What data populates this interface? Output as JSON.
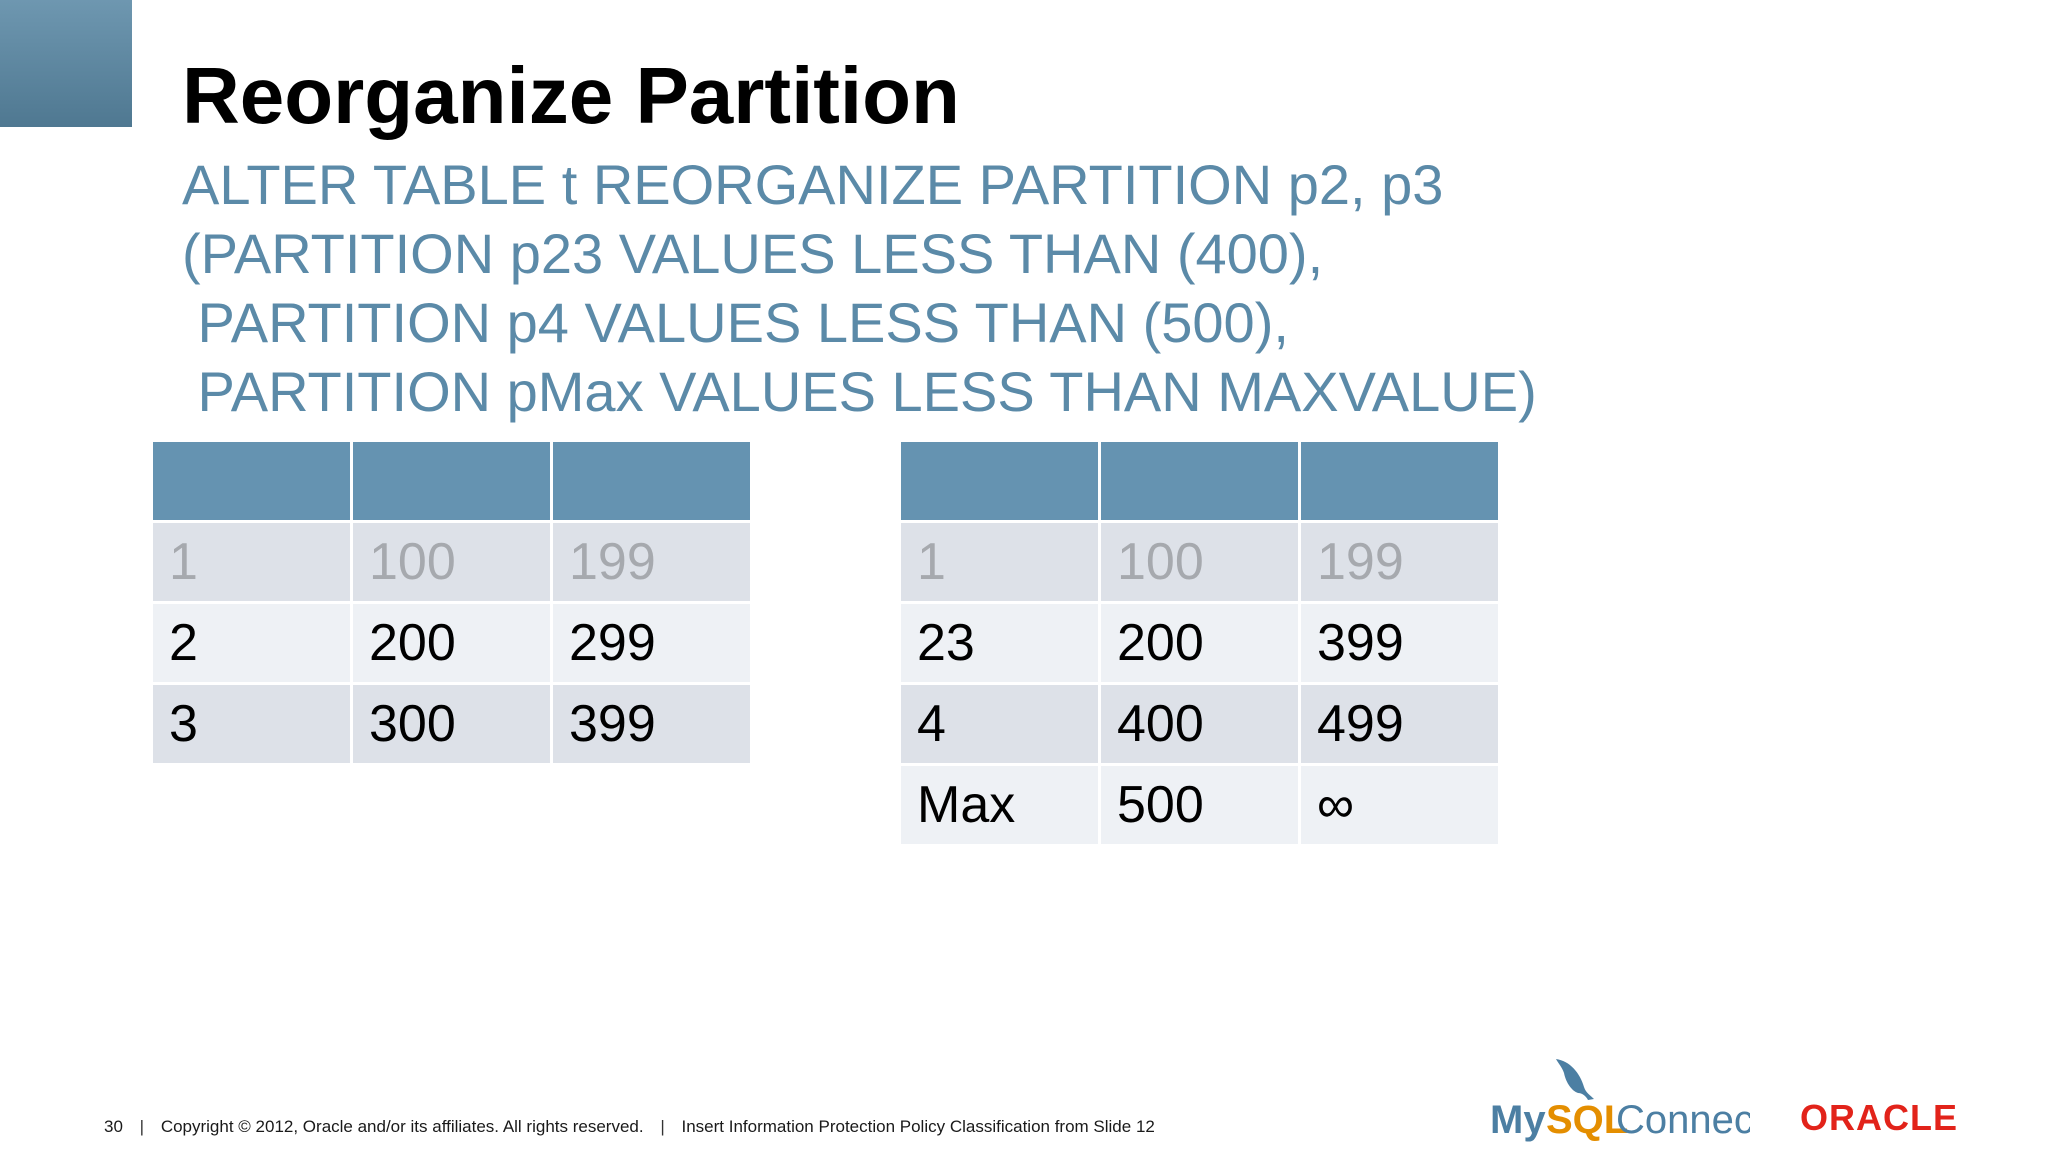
{
  "slide": {
    "title": "Reorganize Partition",
    "sql_lines": [
      "ALTER TABLE t REORGANIZE PARTITION p2, p3",
      "(PARTITION p23 VALUES LESS THAN (400),",
      " PARTITION p4 VALUES LESS THAN (500),",
      " PARTITION pMax VALUES LESS THAN MAXVALUE)"
    ]
  },
  "tables": {
    "before": {
      "rows": [
        [
          "1",
          "100",
          "199"
        ],
        [
          "2",
          "200",
          "299"
        ],
        [
          "3",
          "300",
          "399"
        ]
      ]
    },
    "after": {
      "rows": [
        [
          "1",
          "100",
          "199"
        ],
        [
          "23",
          "200",
          "399"
        ],
        [
          "4",
          "400",
          "499"
        ],
        [
          "Max",
          "500",
          "∞"
        ]
      ]
    }
  },
  "footer": {
    "page_number": "30",
    "copyright": "Copyright © 2012, Oracle and/or its affiliates. All rights reserved.",
    "classification": "Insert Information Protection Policy Classification from Slide 12"
  },
  "logos": {
    "mysql": {
      "my": "My",
      "sql": "SQL",
      "connect": "Connect"
    },
    "oracle": "ORACLE"
  },
  "colors": {
    "accent_blue": "#5b8aa8",
    "table_header": "#6593b1",
    "oracle_red": "#e2231a",
    "mysql_orange": "#e48e00"
  }
}
